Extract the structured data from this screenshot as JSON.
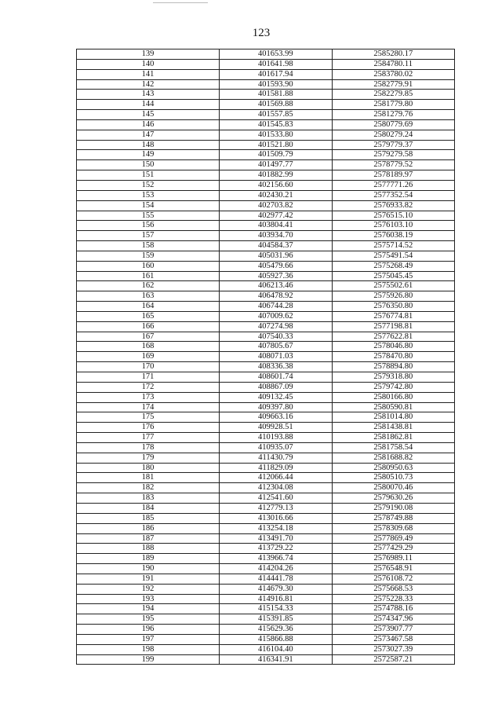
{
  "page_number": "123",
  "table": {
    "rows": [
      [
        "139",
        "401653.99",
        "2585280.17"
      ],
      [
        "140",
        "401641.98",
        "2584780.11"
      ],
      [
        "141",
        "401617.94",
        "2583780.02"
      ],
      [
        "142",
        "401593.90",
        "2582779.91"
      ],
      [
        "143",
        "401581.88",
        "2582279.85"
      ],
      [
        "144",
        "401569.88",
        "2581779.80"
      ],
      [
        "145",
        "401557.85",
        "2581279.76"
      ],
      [
        "146",
        "401545.83",
        "2580779.69"
      ],
      [
        "147",
        "401533.80",
        "2580279.24"
      ],
      [
        "148",
        "401521.80",
        "2579779.37"
      ],
      [
        "149",
        "401509.79",
        "2579279.58"
      ],
      [
        "150",
        "401497.77",
        "2578779.52"
      ],
      [
        "151",
        "401882.99",
        "2578189.97"
      ],
      [
        "152",
        "402156.60",
        "2577771.26"
      ],
      [
        "153",
        "402430.21",
        "2577352.54"
      ],
      [
        "154",
        "402703.82",
        "2576933.82"
      ],
      [
        "155",
        "402977.42",
        "2576515.10"
      ],
      [
        "156",
        "403804.41",
        "2576103.10"
      ],
      [
        "157",
        "403934.70",
        "2576038.19"
      ],
      [
        "158",
        "404584.37",
        "2575714.52"
      ],
      [
        "159",
        "405031.96",
        "2575491.54"
      ],
      [
        "160",
        "405479.66",
        "2575268.49"
      ],
      [
        "161",
        "405927.36",
        "2575045.45"
      ],
      [
        "162",
        "406213.46",
        "2575502.61"
      ],
      [
        "163",
        "406478.92",
        "2575926.80"
      ],
      [
        "164",
        "406744.28",
        "2576350.80"
      ],
      [
        "165",
        "407009.62",
        "2576774.81"
      ],
      [
        "166",
        "407274.98",
        "2577198.81"
      ],
      [
        "167",
        "407540.33",
        "2577622.81"
      ],
      [
        "168",
        "407805.67",
        "2578046.80"
      ],
      [
        "169",
        "408071.03",
        "2578470.80"
      ],
      [
        "170",
        "408336.38",
        "2578894.80"
      ],
      [
        "171",
        "408601.74",
        "2579318.80"
      ],
      [
        "172",
        "408867.09",
        "2579742.80"
      ],
      [
        "173",
        "409132.45",
        "2580166.80"
      ],
      [
        "174",
        "409397.80",
        "2580590.81"
      ],
      [
        "175",
        "409663.16",
        "2581014.80"
      ],
      [
        "176",
        "409928.51",
        "2581438.81"
      ],
      [
        "177",
        "410193.88",
        "2581862.81"
      ],
      [
        "178",
        "410935.07",
        "2581758.54"
      ],
      [
        "179",
        "411430.79",
        "2581688.82"
      ],
      [
        "180",
        "411829.09",
        "2580950.63"
      ],
      [
        "181",
        "412066.44",
        "2580510.73"
      ],
      [
        "182",
        "412304.08",
        "2580070.46"
      ],
      [
        "183",
        "412541.60",
        "2579630.26"
      ],
      [
        "184",
        "412779.13",
        "2579190.08"
      ],
      [
        "185",
        "413016.66",
        "2578749.88"
      ],
      [
        "186",
        "413254.18",
        "2578309.68"
      ],
      [
        "187",
        "413491.70",
        "2577869.49"
      ],
      [
        "188",
        "413729.22",
        "2577429.29"
      ],
      [
        "189",
        "413966.74",
        "2576989.11"
      ],
      [
        "190",
        "414204.26",
        "2576548.91"
      ],
      [
        "191",
        "414441.78",
        "2576108.72"
      ],
      [
        "192",
        "414679.30",
        "2575668.53"
      ],
      [
        "193",
        "414916.81",
        "2575228.33"
      ],
      [
        "194",
        "415154.33",
        "2574788.16"
      ],
      [
        "195",
        "415391.85",
        "2574347.96"
      ],
      [
        "196",
        "415629.36",
        "2573907.77"
      ],
      [
        "197",
        "415866.88",
        "2573467.58"
      ],
      [
        "198",
        "416104.40",
        "2573027.39"
      ],
      [
        "199",
        "416341.91",
        "2572587.21"
      ]
    ]
  }
}
